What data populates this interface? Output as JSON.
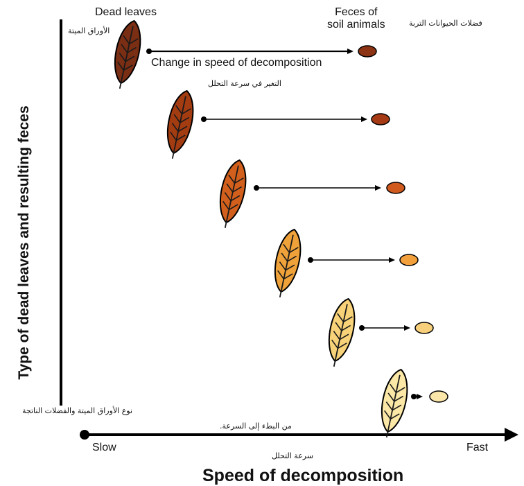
{
  "top_labels": {
    "dead_leaves": "Dead leaves",
    "dead_leaves_ar": "الأوراق الميتة",
    "feces": "Feces of\nsoil animals",
    "feces_ar": "فضلات الحيوانات التربة"
  },
  "change_label": "Change in speed of decomposition",
  "change_label_ar": "التغير في سرعة التحلل",
  "y_axis": {
    "title": "Type of dead leaves and resulting feces",
    "title_ar": "نوع الأوراق الميتة والفضلات الناتجة"
  },
  "x_axis": {
    "slow": "Slow",
    "fast": "Fast",
    "slow_to_fast_ar": "من البطء إلى السرعة.",
    "title": "Speed of decomposition",
    "title_ar": "سرعة التحلل"
  },
  "stages": [
    {
      "leaf_color": "#7a2e14",
      "feces_color": "#8b3312"
    },
    {
      "leaf_color": "#a43c12",
      "feces_color": "#a53a14"
    },
    {
      "leaf_color": "#d2601c",
      "feces_color": "#d05a1e"
    },
    {
      "leaf_color": "#f0a23a",
      "feces_color": "#f2a03c"
    },
    {
      "leaf_color": "#f8d278",
      "feces_color": "#f8d07c"
    },
    {
      "leaf_color": "#fbe7a6",
      "feces_color": "#fbe6aa"
    }
  ],
  "colors": {
    "axis": "#000000",
    "leaf_outline": "#000000",
    "vein": "#1a1a1a"
  }
}
